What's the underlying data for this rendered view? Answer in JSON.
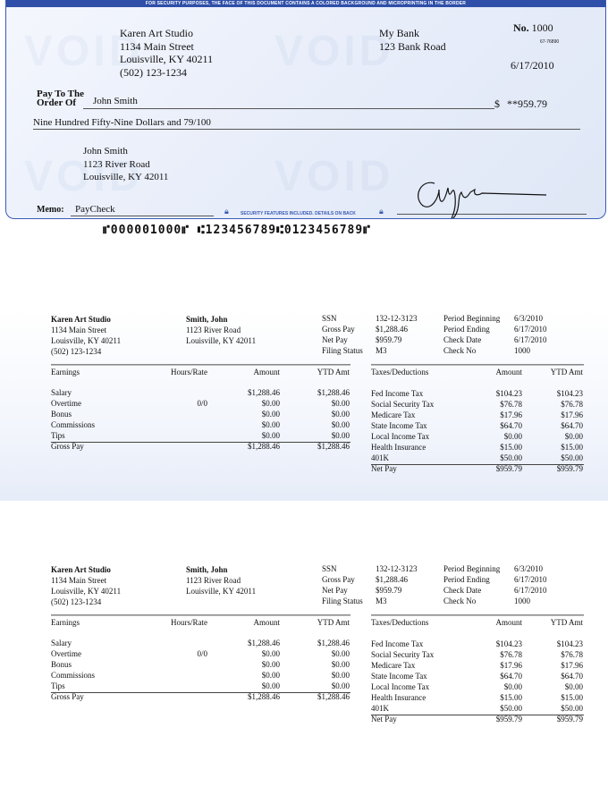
{
  "check": {
    "security_banner": "FOR SECURITY PURPOSES, THE FACE OF THIS DOCUMENT CONTAINS A COLORED BACKGROUND AND MICROPRINTING IN THE BORDER",
    "payer": {
      "name": "Karen Art Studio",
      "street": "1134 Main Street",
      "city": "Louisville, KY 40211",
      "phone": "(502) 123-1234"
    },
    "bank": {
      "name": "My Bank",
      "street": "123 Bank Road"
    },
    "number_label": "No.",
    "number": "1000",
    "routing_fraction": "67-76890",
    "date": "6/17/2010",
    "pay_to_label_1": "Pay To The",
    "pay_to_label_2": "Order Of",
    "payee": "John Smith",
    "currency_symbol": "$",
    "amount": "**959.79",
    "amount_words": "Nine Hundred Fifty-Nine Dollars and 79/100",
    "payee_address": {
      "name": "John Smith",
      "street": "1123 River Road",
      "city": "Louisville, KY 42011"
    },
    "memo_label": "Memo:",
    "memo": "PayCheck",
    "security_features": "SECURITY FEATURES INCLUDED. DETAILS ON BACK",
    "micr": "⑈000001000⑈ ⑆123456789⑆0123456789⑈",
    "watermark": "VOID",
    "accent_color": "#2f4fa8"
  },
  "stub": {
    "company": {
      "name": "Karen Art Studio",
      "street": "1134 Main Street",
      "city": "Louisville, KY 40211",
      "phone": "(502) 123-1234"
    },
    "employee": {
      "name": "Smith, John",
      "street": "1123 River Road",
      "city": "Louisville, KY 42011"
    },
    "info": [
      {
        "label": "SSN",
        "value": "132-12-3123"
      },
      {
        "label": "Gross Pay",
        "value": "$1,288.46"
      },
      {
        "label": "Net Pay",
        "value": "$959.79"
      },
      {
        "label": "Filing Status",
        "value": "M3"
      }
    ],
    "period": [
      {
        "label": "Period Beginning",
        "value": "6/3/2010"
      },
      {
        "label": "Period Ending",
        "value": "6/17/2010"
      },
      {
        "label": "Check Date",
        "value": "6/17/2010"
      },
      {
        "label": "Check No",
        "value": "1000"
      }
    ],
    "earnings": {
      "headers": [
        "Earnings",
        "Hours/Rate",
        "Amount",
        "YTD Amt"
      ],
      "rows": [
        [
          "Salary",
          "",
          "$1,288.46",
          "$1,288.46"
        ],
        [
          "Overtime",
          "0/0",
          "$0.00",
          "$0.00"
        ],
        [
          "Bonus",
          "",
          "$0.00",
          "$0.00"
        ],
        [
          "Commissions",
          "",
          "$0.00",
          "$0.00"
        ],
        [
          "Tips",
          "",
          "$0.00",
          "$0.00"
        ]
      ],
      "total": [
        "Gross Pay",
        "",
        "$1,288.46",
        "$1,288.46"
      ]
    },
    "deductions": {
      "headers": [
        "Taxes/Deductions",
        "Amount",
        "YTD Amt"
      ],
      "rows": [
        [
          "Fed Income Tax",
          "$104.23",
          "$104.23"
        ],
        [
          "Social Security Tax",
          "$76.78",
          "$76.78"
        ],
        [
          "Medicare Tax",
          "$17.96",
          "$17.96"
        ],
        [
          "State Income Tax",
          "$64.70",
          "$64.70"
        ],
        [
          "Local Income Tax",
          "$0.00",
          "$0.00"
        ],
        [
          "Health Insurance",
          "$15.00",
          "$15.00"
        ],
        [
          "401K",
          "$50.00",
          "$50.00"
        ]
      ],
      "total": [
        "Net Pay",
        "$959.79",
        "$959.79"
      ]
    }
  }
}
